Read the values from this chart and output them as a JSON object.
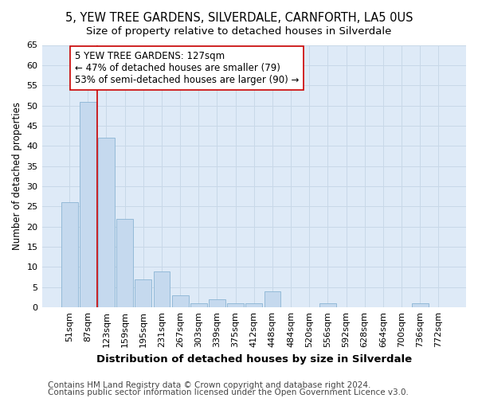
{
  "title1": "5, YEW TREE GARDENS, SILVERDALE, CARNFORTH, LA5 0US",
  "title2": "Size of property relative to detached houses in Silverdale",
  "xlabel": "Distribution of detached houses by size in Silverdale",
  "ylabel": "Number of detached properties",
  "categories": [
    "51sqm",
    "87sqm",
    "123sqm",
    "159sqm",
    "195sqm",
    "231sqm",
    "267sqm",
    "303sqm",
    "339sqm",
    "375sqm",
    "412sqm",
    "448sqm",
    "484sqm",
    "520sqm",
    "556sqm",
    "592sqm",
    "628sqm",
    "664sqm",
    "700sqm",
    "736sqm",
    "772sqm"
  ],
  "values": [
    26,
    51,
    42,
    22,
    7,
    9,
    3,
    1,
    2,
    1,
    1,
    4,
    0,
    0,
    1,
    0,
    0,
    0,
    0,
    1,
    0
  ],
  "bar_color": "#c5d9ee",
  "bar_edge_color": "#8ab4d4",
  "grid_color": "#c8d8e8",
  "background_color": "#deeaf7",
  "vline_color": "#cc0000",
  "vline_x_index": 2,
  "annotation_text": "5 YEW TREE GARDENS: 127sqm\n← 47% of detached houses are smaller (79)\n53% of semi-detached houses are larger (90) →",
  "ylim": [
    0,
    65
  ],
  "yticks": [
    0,
    5,
    10,
    15,
    20,
    25,
    30,
    35,
    40,
    45,
    50,
    55,
    60,
    65
  ],
  "footer1": "Contains HM Land Registry data © Crown copyright and database right 2024.",
  "footer2": "Contains public sector information licensed under the Open Government Licence v3.0.",
  "title1_fontsize": 10.5,
  "title2_fontsize": 9.5,
  "xlabel_fontsize": 9.5,
  "ylabel_fontsize": 8.5,
  "tick_fontsize": 8,
  "annotation_fontsize": 8.5,
  "footer_fontsize": 7.5
}
